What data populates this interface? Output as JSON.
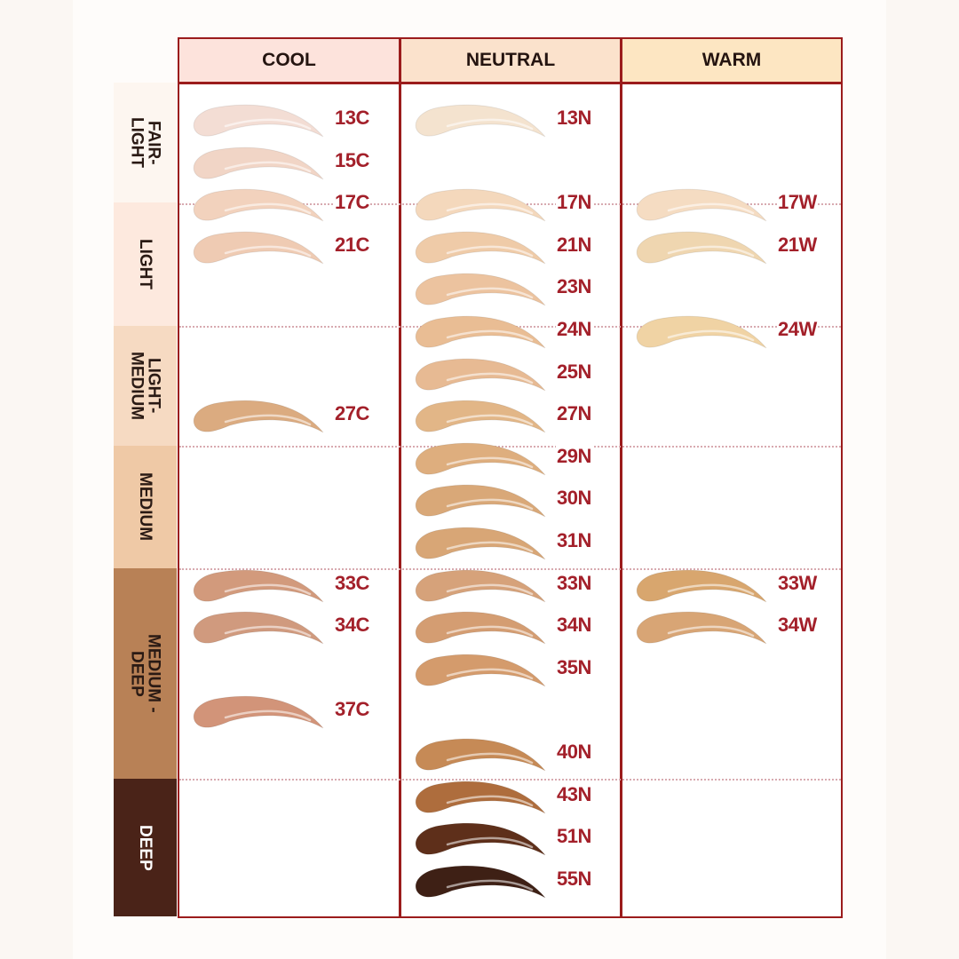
{
  "columns": [
    {
      "label": "COOL",
      "color": "#fde3dc"
    },
    {
      "label": "NEUTRAL",
      "color": "#fbe2cc"
    },
    {
      "label": "WARM",
      "color": "#fde6c2"
    }
  ],
  "depth_levels": [
    {
      "label": "FAIR-\nLIGHT",
      "color": "#fdf6f0",
      "text": "#2a1a14"
    },
    {
      "label": "LIGHT",
      "color": "#fde9de",
      "text": "#2a1a14"
    },
    {
      "label": "LIGHT-\nMEDIUM",
      "color": "#f6dac2",
      "text": "#2a1a14"
    },
    {
      "label": "MEDIUM",
      "color": "#efc9a6",
      "text": "#2a1a14"
    },
    {
      "label": "MEDIUM -\nDEEP",
      "color": "#b88156",
      "text": "#2a1a14"
    },
    {
      "label": "DEEP",
      "color": "#4a2318",
      "text": "#ffffff"
    }
  ],
  "shades": {
    "cool": [
      {
        "name": "13C",
        "color": "#f3ddd4"
      },
      {
        "name": "15C",
        "color": "#f1d5c6"
      },
      {
        "name": "17C",
        "color": "#f2d2bd"
      },
      {
        "name": "21C",
        "color": "#efcbb3"
      },
      {
        "name": "27C",
        "color": "#dbab80"
      },
      {
        "name": "33C",
        "color": "#d29a7c"
      },
      {
        "name": "34C",
        "color": "#d09a7e"
      },
      {
        "name": "37C",
        "color": "#d29479"
      }
    ],
    "neutral": [
      {
        "name": "13N",
        "color": "#f4e3cf"
      },
      {
        "name": "17N",
        "color": "#f4d8bc"
      },
      {
        "name": "21N",
        "color": "#efcba8"
      },
      {
        "name": "23N",
        "color": "#ecc39f"
      },
      {
        "name": "24N",
        "color": "#e9bd94"
      },
      {
        "name": "25N",
        "color": "#e7ba93"
      },
      {
        "name": "27N",
        "color": "#e2b687"
      },
      {
        "name": "29N",
        "color": "#deae7e"
      },
      {
        "name": "30N",
        "color": "#d9a878"
      },
      {
        "name": "31N",
        "color": "#d8a676"
      },
      {
        "name": "33N",
        "color": "#d6a27a"
      },
      {
        "name": "34N",
        "color": "#d49d72"
      },
      {
        "name": "35N",
        "color": "#d49b6c"
      },
      {
        "name": "40N",
        "color": "#c68a56"
      },
      {
        "name": "43N",
        "color": "#ae6d3d"
      },
      {
        "name": "51N",
        "color": "#5e2f1a"
      },
      {
        "name": "55N",
        "color": "#3e2015"
      }
    ],
    "warm": [
      {
        "name": "17W",
        "color": "#f5dcc2"
      },
      {
        "name": "21W",
        "color": "#efd6b0"
      },
      {
        "name": "24W",
        "color": "#f0d3a4"
      },
      {
        "name": "33W",
        "color": "#d8a66e"
      },
      {
        "name": "34W",
        "color": "#d8a575"
      }
    ]
  }
}
